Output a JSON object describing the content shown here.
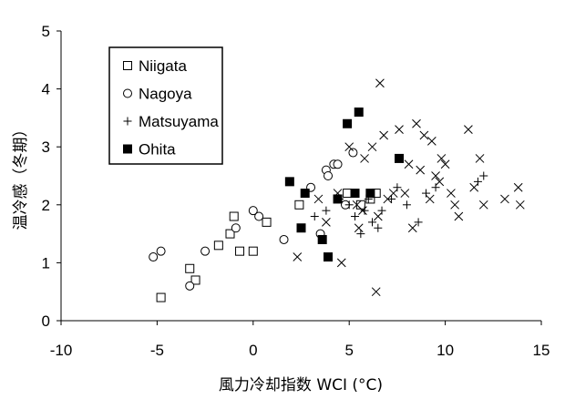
{
  "chart_data": {
    "type": "scatter",
    "title": "",
    "xlabel": "風力冷却指数 WCI (°C)",
    "ylabel": "温冷感（冬期）",
    "xlim": [
      -10,
      15
    ],
    "ylim": [
      0,
      5
    ],
    "xticks": [
      "-10",
      "-5",
      "0",
      "5",
      "10",
      "15"
    ],
    "yticks": [
      "0",
      "1",
      "2",
      "3",
      "4",
      "5"
    ],
    "grid": false,
    "legend_position": "top-left",
    "series": [
      {
        "name": "Niigata",
        "marker": "open-square",
        "points": [
          [
            -4.8,
            0.4
          ],
          [
            -3.3,
            0.9
          ],
          [
            -3.0,
            0.7
          ],
          [
            -1.8,
            1.3
          ],
          [
            -1.2,
            1.5
          ],
          [
            -1.0,
            1.8
          ],
          [
            -0.7,
            1.2
          ],
          [
            0.0,
            1.2
          ],
          [
            0.7,
            1.7
          ],
          [
            2.4,
            2.0
          ],
          [
            4.9,
            2.2
          ],
          [
            5.6,
            2.0
          ],
          [
            6.1,
            2.1
          ],
          [
            6.4,
            2.2
          ]
        ]
      },
      {
        "name": "Nagoya",
        "marker": "open-circle",
        "points": [
          [
            -5.2,
            1.1
          ],
          [
            -4.8,
            1.2
          ],
          [
            -3.3,
            0.6
          ],
          [
            -2.5,
            1.2
          ],
          [
            -0.9,
            1.6
          ],
          [
            0.0,
            1.9
          ],
          [
            0.3,
            1.8
          ],
          [
            1.6,
            1.4
          ],
          [
            3.0,
            2.3
          ],
          [
            3.5,
            1.5
          ],
          [
            3.8,
            2.6
          ],
          [
            3.9,
            2.5
          ],
          [
            4.2,
            2.7
          ],
          [
            4.4,
            2.7
          ],
          [
            4.8,
            2.0
          ],
          [
            5.2,
            2.9
          ]
        ]
      },
      {
        "name": "Matsuyama",
        "marker": "plus",
        "points": [
          [
            3.2,
            1.8
          ],
          [
            3.8,
            1.9
          ],
          [
            4.5,
            2.1
          ],
          [
            5.0,
            2.0
          ],
          [
            5.3,
            1.8
          ],
          [
            5.6,
            1.5
          ],
          [
            5.8,
            1.9
          ],
          [
            6.0,
            2.1
          ],
          [
            6.2,
            1.7
          ],
          [
            6.5,
            1.6
          ],
          [
            6.7,
            1.9
          ],
          [
            7.2,
            2.1
          ],
          [
            7.5,
            2.3
          ],
          [
            8.0,
            2.0
          ],
          [
            8.6,
            1.7
          ],
          [
            9.0,
            2.2
          ],
          [
            9.5,
            2.3
          ],
          [
            11.7,
            2.4
          ],
          [
            12.0,
            2.5
          ]
        ]
      },
      {
        "name": "",
        "marker": "cross",
        "points": [
          [
            2.3,
            1.1
          ],
          [
            3.4,
            2.1
          ],
          [
            3.8,
            1.7
          ],
          [
            4.4,
            2.2
          ],
          [
            4.6,
            1.0
          ],
          [
            5.0,
            3.0
          ],
          [
            5.4,
            2.0
          ],
          [
            5.5,
            1.6
          ],
          [
            5.7,
            1.9
          ],
          [
            5.8,
            2.8
          ],
          [
            6.1,
            2.2
          ],
          [
            6.2,
            3.0
          ],
          [
            6.4,
            0.5
          ],
          [
            6.5,
            1.8
          ],
          [
            6.6,
            4.1
          ],
          [
            6.8,
            3.2
          ],
          [
            7.0,
            2.1
          ],
          [
            7.3,
            2.2
          ],
          [
            7.6,
            3.3
          ],
          [
            7.9,
            2.2
          ],
          [
            8.1,
            2.7
          ],
          [
            8.3,
            1.6
          ],
          [
            8.5,
            3.4
          ],
          [
            8.7,
            2.6
          ],
          [
            8.9,
            3.2
          ],
          [
            9.2,
            2.1
          ],
          [
            9.3,
            3.1
          ],
          [
            9.5,
            2.5
          ],
          [
            9.7,
            2.4
          ],
          [
            9.8,
            2.8
          ],
          [
            10.0,
            2.7
          ],
          [
            10.3,
            2.2
          ],
          [
            10.5,
            2.0
          ],
          [
            10.7,
            1.8
          ],
          [
            11.2,
            3.3
          ],
          [
            11.5,
            2.3
          ],
          [
            11.8,
            2.8
          ],
          [
            12.0,
            2.0
          ],
          [
            13.1,
            2.1
          ],
          [
            13.8,
            2.3
          ],
          [
            13.9,
            2.0
          ]
        ]
      },
      {
        "name": "Ohita",
        "marker": "filled-square",
        "points": [
          [
            1.9,
            2.4
          ],
          [
            2.5,
            1.6
          ],
          [
            2.7,
            2.2
          ],
          [
            3.6,
            1.4
          ],
          [
            3.9,
            1.1
          ],
          [
            4.4,
            2.1
          ],
          [
            4.9,
            3.4
          ],
          [
            5.3,
            2.2
          ],
          [
            5.5,
            3.6
          ],
          [
            6.1,
            2.2
          ],
          [
            7.6,
            2.8
          ]
        ]
      }
    ]
  }
}
